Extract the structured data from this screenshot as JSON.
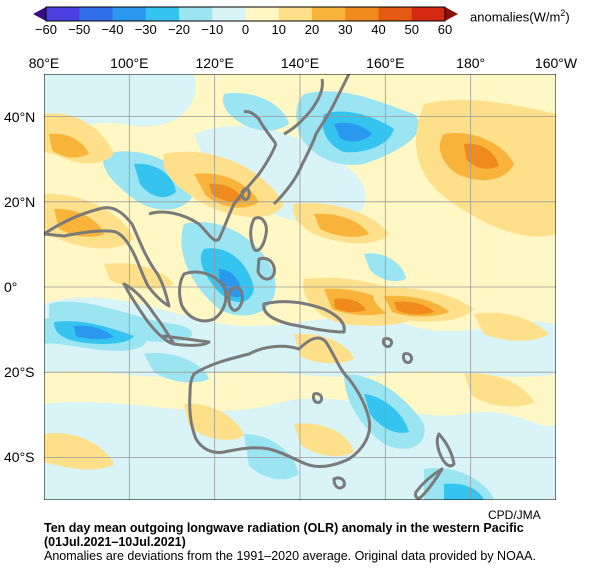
{
  "colorbar": {
    "ticks": [
      "−60",
      "−50",
      "−40",
      "−30",
      "−20",
      "−10",
      "0",
      "10",
      "20",
      "30",
      "40",
      "50",
      "60"
    ],
    "unit_label": "anomalies(W/m",
    "unit_sup": "2",
    "unit_close": ")",
    "bins": [
      {
        "color": "#4b3fe0"
      },
      {
        "color": "#2f6ee8"
      },
      {
        "color": "#2a98ee"
      },
      {
        "color": "#35c3ef"
      },
      {
        "color": "#9be5f3"
      },
      {
        "color": "#d8f4f6"
      },
      {
        "color": "#fff7c4"
      },
      {
        "color": "#ffe08a"
      },
      {
        "color": "#f8b43a"
      },
      {
        "color": "#f08a1c"
      },
      {
        "color": "#e55a10"
      },
      {
        "color": "#d42a12"
      }
    ],
    "under_color": "#3a0a80",
    "over_color": "#8a1208"
  },
  "map": {
    "lon_labels": [
      "80°E",
      "100°E",
      "120°E",
      "140°E",
      "160°E",
      "180°",
      "160°W"
    ],
    "lat_labels": [
      "40°N",
      "20°N",
      "0°",
      "20°S",
      "40°S"
    ],
    "land_color": "#7a7a7a",
    "grid_color": "#9a9a9a"
  },
  "credit": "CPD/JMA",
  "caption": {
    "line1": "Ten day mean outgoing longwave radiation (OLR) anomaly in the western Pacific",
    "line2": "(01Jul.2021–10Jul.2021)",
    "line3": "Anomalies are deviations from the 1991–2020 average. Original data provided by NOAA."
  }
}
